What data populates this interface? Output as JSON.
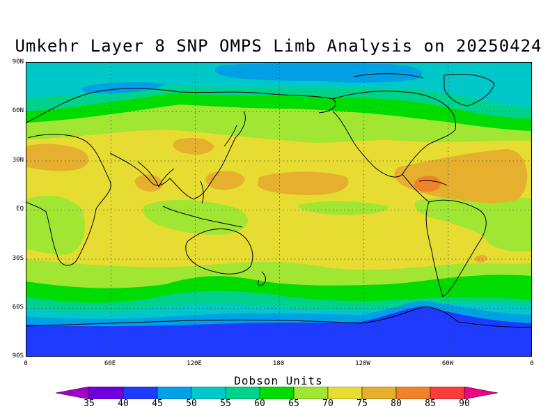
{
  "title": "Umkehr Layer 8 SNP OMPS Limb Analysis on 20250424",
  "lat_labels": [
    "90N",
    "60N",
    "30N",
    "EQ",
    "30S",
    "60S",
    "90S"
  ],
  "lon_labels": [
    "0",
    "60E",
    "120E",
    "180",
    "120W",
    "60W",
    "0"
  ],
  "legend": {
    "title": "Dobson Units",
    "ticks": [
      "35",
      "40",
      "45",
      "50",
      "55",
      "60",
      "65",
      "70",
      "75",
      "80",
      "85",
      "90"
    ],
    "colors": [
      "#a000c8",
      "#6e00dc",
      "#1e3cff",
      "#00a0e6",
      "#00c8c8",
      "#00d28c",
      "#00dc00",
      "#a0e632",
      "#e6dc32",
      "#e6af2d",
      "#f08228",
      "#fa3c3c",
      "#f00082"
    ]
  },
  "colors": {
    "polar_blue": "#1e3cff",
    "light_blue": "#00a0e6",
    "cyan": "#00c8c8",
    "teal_green": "#00d28c",
    "green": "#00dc00",
    "yellow_green": "#a0e632",
    "yellow": "#e6dc32",
    "light_orange": "#e6af2d",
    "orange": "#f08228",
    "coast": "#000000"
  }
}
